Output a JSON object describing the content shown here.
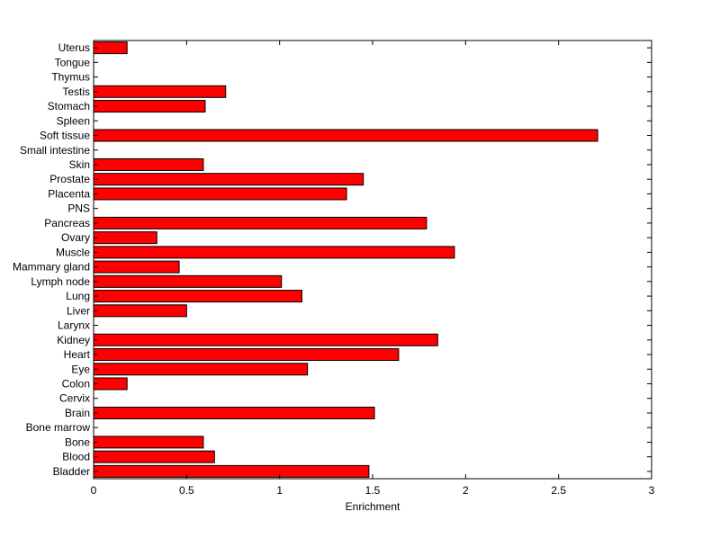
{
  "chart_data": {
    "type": "bar",
    "orientation": "horizontal",
    "categories": [
      "Bladder",
      "Blood",
      "Bone",
      "Bone marrow",
      "Brain",
      "Cervix",
      "Colon",
      "Eye",
      "Heart",
      "Kidney",
      "Larynx",
      "Liver",
      "Lung",
      "Lymph node",
      "Mammary gland",
      "Muscle",
      "Ovary",
      "Pancreas",
      "PNS",
      "Placenta",
      "Prostate",
      "Skin",
      "Small intestine",
      "Soft tissue",
      "Spleen",
      "Stomach",
      "Testis",
      "Thymus",
      "Tongue",
      "Uterus"
    ],
    "values": [
      1.48,
      0.65,
      0.59,
      0,
      1.51,
      0,
      0.18,
      1.15,
      1.64,
      1.85,
      0,
      0.5,
      1.12,
      1.01,
      0.46,
      1.94,
      0.34,
      1.79,
      0,
      1.36,
      1.45,
      0.59,
      0,
      2.71,
      0,
      0.6,
      0.71,
      0,
      0,
      0.18
    ],
    "xlabel": "Enrichment",
    "ylabel": "",
    "xlim": [
      0,
      3
    ],
    "xticks": [
      0,
      0.5,
      1,
      1.5,
      2,
      2.5,
      3
    ],
    "xtick_labels": [
      "0",
      "0.5",
      "1",
      "1.5",
      "2",
      "2.5",
      "3"
    ],
    "grid": false,
    "bar_color": "#ff0000",
    "edge_color": "#000000"
  }
}
